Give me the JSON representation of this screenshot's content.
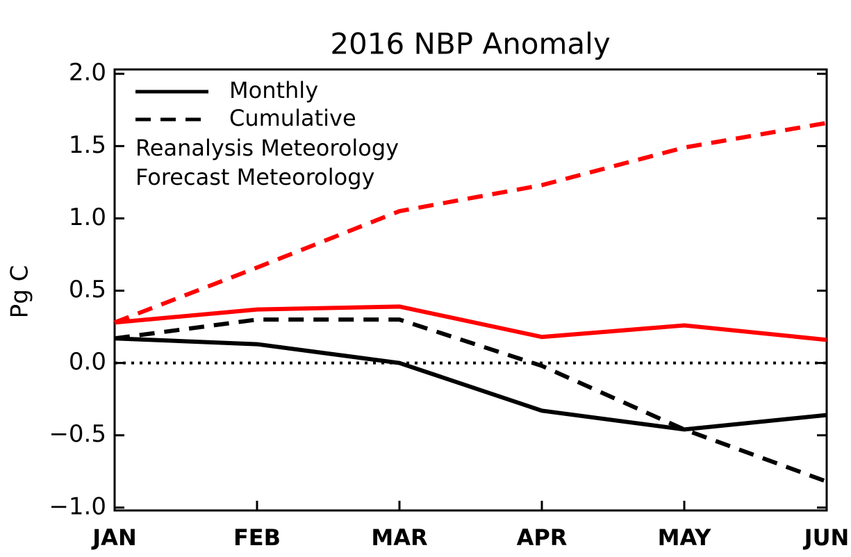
{
  "chart_data": {
    "type": "line",
    "title": "2016 NBP Anomaly",
    "y_label": "Pg C",
    "categories": [
      "JAN",
      "FEB",
      "MAR",
      "APR",
      "MAY",
      "JUN"
    ],
    "ylim": [
      -1.02,
      2.03
    ],
    "yticks": [
      {
        "value": 2.0,
        "label": "2.0"
      },
      {
        "value": 1.5,
        "label": "1.5"
      },
      {
        "value": 1.0,
        "label": "1.0"
      },
      {
        "value": 0.5,
        "label": "0.5"
      },
      {
        "value": 0.0,
        "label": "0.0"
      },
      {
        "value": -0.5,
        "label": "−0.5"
      },
      {
        "value": -1.0,
        "label": "−1.0"
      }
    ],
    "reference_line": 0,
    "legend": {
      "styles": [
        {
          "label": "Monthly",
          "dash": "solid"
        },
        {
          "label": "Cumulative",
          "dash": "dashed"
        }
      ],
      "colors": [
        {
          "label": "Reanalysis Meteorology",
          "color": "#000000"
        },
        {
          "label": "Forecast Meteorology",
          "color": "#ff0000"
        }
      ]
    },
    "series": [
      {
        "color": "#000000",
        "dash": "solid",
        "values": [
          0.17,
          0.13,
          0.0,
          -0.33,
          -0.46,
          -0.36
        ]
      },
      {
        "color": "#000000",
        "dash": "dashed",
        "values": [
          0.17,
          0.3,
          0.3,
          -0.02,
          -0.46,
          -0.82
        ]
      },
      {
        "color": "#ff0000",
        "dash": "solid",
        "values": [
          0.28,
          0.37,
          0.39,
          0.18,
          0.26,
          0.16
        ]
      },
      {
        "color": "#ff0000",
        "dash": "dashed",
        "values": [
          0.28,
          0.66,
          1.05,
          1.23,
          1.49,
          1.66
        ]
      }
    ]
  }
}
